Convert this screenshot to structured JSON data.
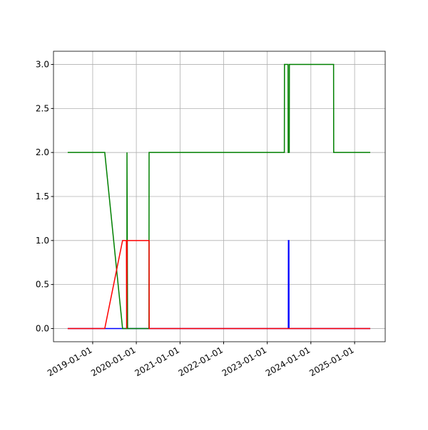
{
  "chart_data": {
    "type": "line",
    "xlim": [
      "2018-02-07",
      "2025-09-14"
    ],
    "xticks": [
      "2019-01-01",
      "2020-01-01",
      "2021-01-01",
      "2022-01-01",
      "2023-01-01",
      "2024-01-01",
      "2025-01-01"
    ],
    "ylim": [
      -0.15,
      3.15
    ],
    "yticks": [
      {
        "value": 0,
        "label": "0.0"
      },
      {
        "value": 0.5,
        "label": "0.5"
      },
      {
        "value": 1,
        "label": "1.0"
      },
      {
        "value": 1.5,
        "label": "1.5"
      },
      {
        "value": 2,
        "label": "2.0"
      },
      {
        "value": 2.5,
        "label": "2.5"
      },
      {
        "value": 3,
        "label": "3.0"
      }
    ],
    "grid": true,
    "series": [
      {
        "color": "blue",
        "x": [
          "2018-06-06",
          "2023-06-26",
          "2023-06-27",
          "2023-07-01",
          "2023-07-02",
          "2025-05-12"
        ],
        "values": [
          0,
          0,
          1,
          1,
          0,
          0
        ]
      },
      {
        "color": "green",
        "x": [
          "2018-06-06",
          "2019-04-12",
          "2019-09-08",
          "2019-10-14",
          "2019-10-15",
          "2019-10-20",
          "2020-04-16",
          "2020-04-17",
          "2023-05-24",
          "2023-05-25",
          "2023-06-24",
          "2023-06-25",
          "2023-07-04",
          "2023-07-05",
          "2024-07-09",
          "2024-07-10",
          "2025-05-12"
        ],
        "values": [
          2,
          2,
          0,
          0,
          2,
          0,
          0,
          2,
          2,
          3,
          3,
          2,
          2,
          3,
          3,
          2,
          2
        ]
      },
      {
        "color": "red",
        "x": [
          "2018-06-06",
          "2019-04-12",
          "2019-09-08",
          "2019-10-10",
          "2019-10-12",
          "2019-10-16",
          "2020-04-17",
          "2020-04-18",
          "2025-05-12"
        ],
        "values": [
          0,
          0,
          1,
          1,
          0,
          1,
          1,
          0,
          0
        ]
      }
    ]
  }
}
